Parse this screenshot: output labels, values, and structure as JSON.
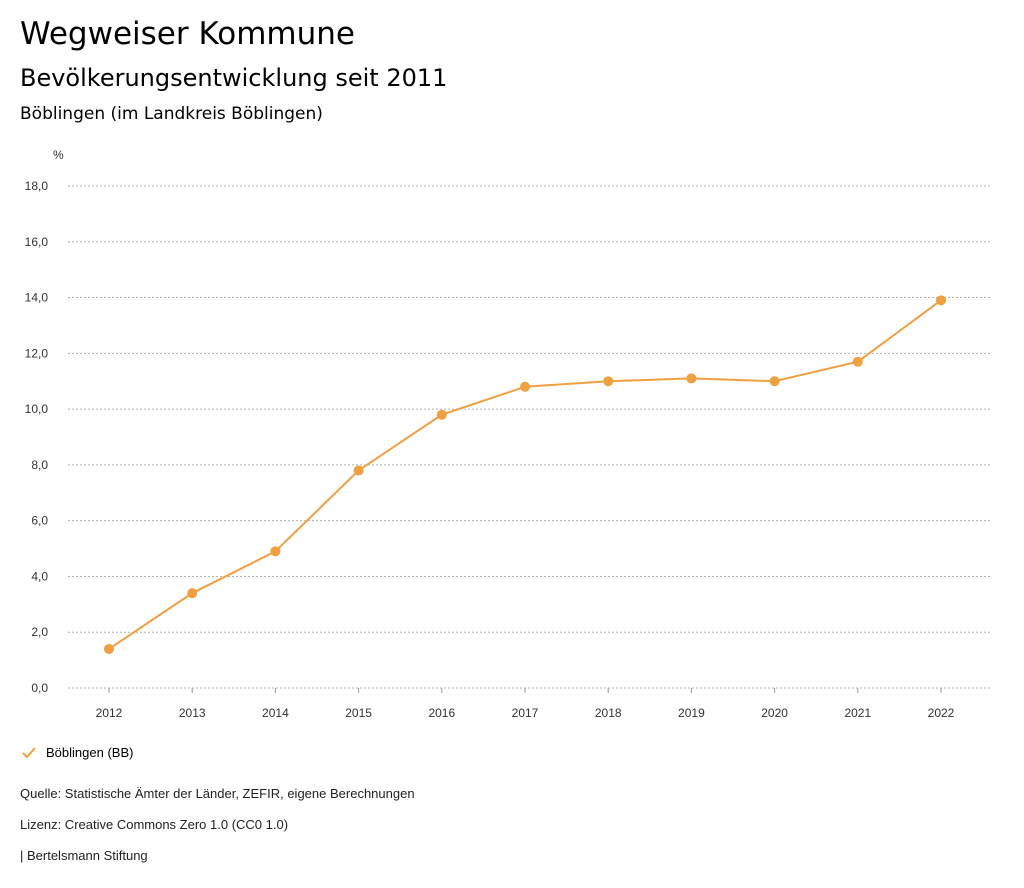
{
  "header": {
    "title": "Wegweiser Kommune",
    "subtitle": "Bevölkerungsentwicklung seit 2011",
    "region": "Böblingen (im Landkreis Böblingen)"
  },
  "colors": {
    "series": "#f0a040",
    "grid": "#b0b0b0"
  },
  "chart_data": {
    "type": "line",
    "ylabel": "%",
    "ylim": [
      0,
      18
    ],
    "yticks": [
      "0,0",
      "2,0",
      "4,0",
      "6,0",
      "8,0",
      "10,0",
      "12,0",
      "14,0",
      "16,0",
      "18,0"
    ],
    "x": [
      "2012",
      "2013",
      "2014",
      "2015",
      "2016",
      "2017",
      "2018",
      "2019",
      "2020",
      "2021",
      "2022"
    ],
    "series": [
      {
        "name": "Böblingen (BB)",
        "values": [
          1.4,
          3.4,
          4.9,
          7.8,
          9.8,
          10.8,
          11.0,
          11.1,
          11.0,
          11.7,
          13.9
        ]
      }
    ],
    "grid": true,
    "legend": "bottom-left"
  },
  "legend": {
    "label": "Böblingen (BB)",
    "icon": "check-icon"
  },
  "footer": {
    "source": "Quelle: Statistische Ämter der Länder, ZEFIR, eigene Berechnungen",
    "license": "Lizenz: Creative Commons Zero 1.0 (CC0 1.0)",
    "brand": "| Bertelsmann Stiftung"
  }
}
